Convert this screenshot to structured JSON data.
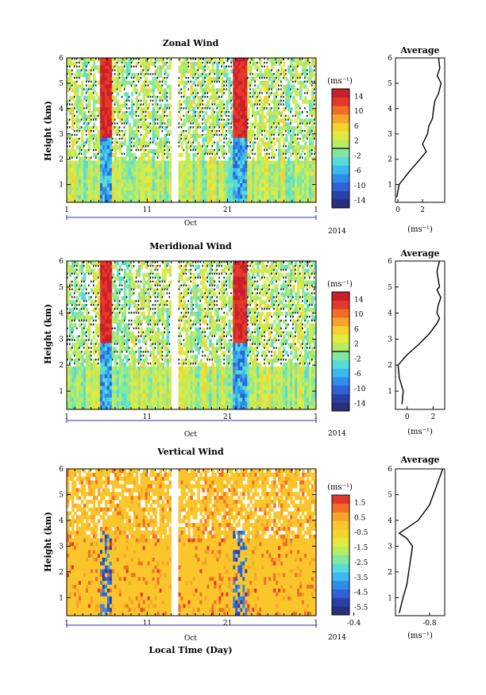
{
  "chart_data": [
    {
      "type": "heatmap",
      "title": "Zonal Wind",
      "ylabel": "Height (km)",
      "ylim": [
        0.3,
        6.0
      ],
      "yticks": [
        1,
        2,
        3,
        4,
        5,
        6
      ],
      "xticks": [
        "1",
        "11",
        "21",
        "1"
      ],
      "month_label": "Oct",
      "year_label": "2014",
      "colorbar": {
        "label": "(ms⁻¹)",
        "min": -16,
        "max": 16,
        "ticks": [
          "14",
          "10",
          "6",
          "2",
          "-2",
          "-6",
          "-10",
          "-14"
        ]
      },
      "profile": {
        "title": "Average",
        "xlabel": "(ms⁻¹)",
        "xticks": [
          "0",
          "2"
        ],
        "xlim": [
          -0.2,
          3.8
        ],
        "heights": [
          0.5,
          1.0,
          1.5,
          2.0,
          2.3,
          2.6,
          3.0,
          3.3,
          3.6,
          4.0,
          4.3,
          4.6,
          4.8,
          5.0,
          5.3,
          5.6,
          6.0
        ],
        "values": [
          -0.1,
          0.1,
          0.9,
          1.8,
          2.3,
          2.0,
          2.4,
          2.5,
          2.8,
          2.9,
          3.0,
          3.3,
          3.4,
          3.5,
          3.2,
          3.4,
          3.3
        ]
      }
    },
    {
      "type": "heatmap",
      "title": "Meridional Wind",
      "ylabel": "Height (km)",
      "ylim": [
        0.3,
        6.0
      ],
      "yticks": [
        1,
        2,
        3,
        4,
        5,
        6
      ],
      "xticks": [
        "1",
        "11",
        "21",
        "1"
      ],
      "month_label": "Oct",
      "year_label": "2014",
      "colorbar": {
        "label": "(ms⁻¹)",
        "min": -16,
        "max": 16,
        "ticks": [
          "14",
          "10",
          "6",
          "2",
          "-2",
          "-6",
          "-10",
          "-14"
        ]
      },
      "profile": {
        "title": "Average",
        "xlabel": "(ms⁻¹)",
        "xticks": [
          "0",
          "2"
        ],
        "xlim": [
          -0.9,
          2.9
        ],
        "heights": [
          0.5,
          1.0,
          1.5,
          2.0,
          2.4,
          2.8,
          3.2,
          3.6,
          3.8,
          4.0,
          4.3,
          4.6,
          4.9,
          5.0,
          5.3,
          5.6,
          6.0
        ],
        "values": [
          -0.4,
          -0.3,
          -0.6,
          -0.7,
          0.0,
          0.9,
          1.7,
          2.3,
          2.5,
          2.3,
          2.4,
          2.6,
          2.3,
          2.5,
          2.4,
          2.3,
          2.5
        ]
      }
    },
    {
      "type": "heatmap",
      "title": "Vertical Wind",
      "ylabel": "Height (km)",
      "xlabel": "Local Time (Day)",
      "ylim": [
        0.3,
        6.0
      ],
      "yticks": [
        1,
        2,
        3,
        4,
        5,
        6
      ],
      "xticks": [
        "1",
        "11",
        "21",
        "1"
      ],
      "month_label": "Oct",
      "year_label": "2014",
      "colorbar": {
        "label": "(ms⁻¹)",
        "min": -6.5,
        "max": 2.5,
        "ticks": [
          "1.5",
          "0.5",
          "-0.5",
          "-1.5",
          "-2.5",
          "-3.5",
          "-4.5",
          "-5.5"
        ]
      },
      "profile": {
        "title": "Average",
        "xlabel": "(ms⁻¹)",
        "xticks": [
          "-0.4",
          "-0.8"
        ],
        "xlim": [
          -0.62,
          -0.88
        ],
        "heights": [
          0.4,
          1.0,
          1.5,
          2.0,
          2.5,
          3.0,
          3.3,
          3.5,
          3.8,
          4.0,
          4.3,
          4.6,
          5.0,
          5.4,
          5.8,
          6.0
        ],
        "values": [
          -0.64,
          -0.66,
          -0.68,
          -0.69,
          -0.7,
          -0.71,
          -0.68,
          -0.64,
          -0.7,
          -0.74,
          -0.77,
          -0.8,
          -0.82,
          -0.84,
          -0.86,
          -0.87
        ]
      }
    }
  ]
}
